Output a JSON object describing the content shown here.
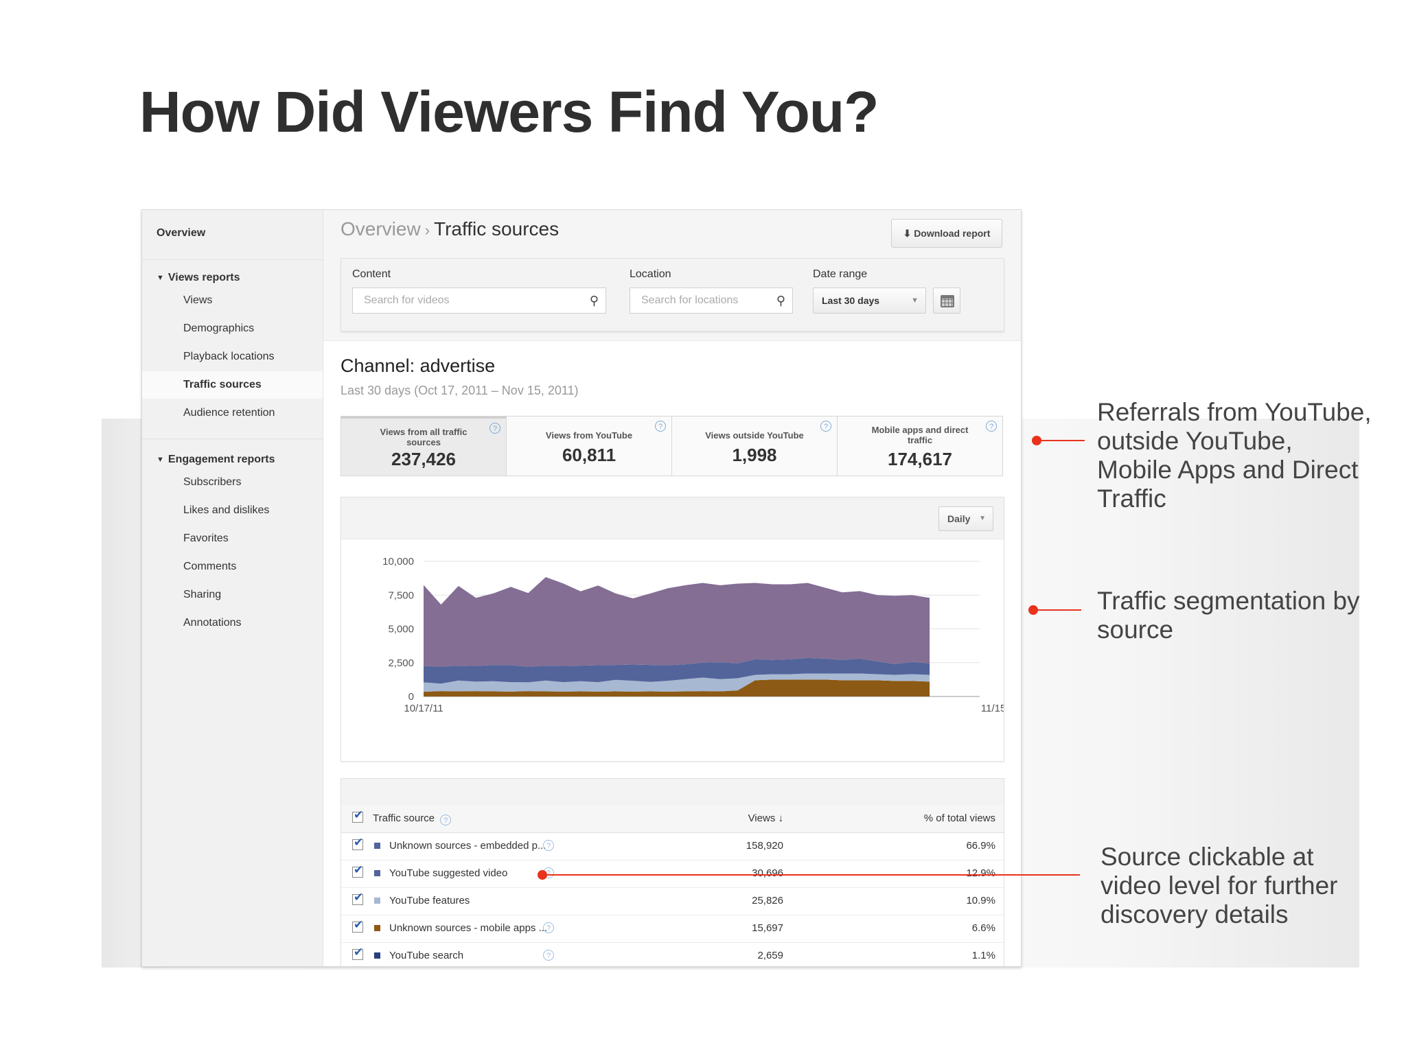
{
  "slide": {
    "title": "How Did Viewers Find You?"
  },
  "sidebar": {
    "overview": "Overview",
    "views_group": "Views reports",
    "views_items": [
      "Views",
      "Demographics",
      "Playback locations",
      "Traffic sources",
      "Audience retention"
    ],
    "active_item": "Traffic sources",
    "engagement_group": "Engagement reports",
    "engagement_items": [
      "Subscribers",
      "Likes and dislikes",
      "Favorites",
      "Comments",
      "Sharing",
      "Annotations"
    ]
  },
  "header": {
    "breadcrumb_parent": "Overview",
    "breadcrumb_sep": "›",
    "breadcrumb_current": "Traffic sources",
    "download_label": "Download report"
  },
  "filters": {
    "content_label": "Content",
    "content_placeholder": "Search for videos",
    "location_label": "Location",
    "location_placeholder": "Search for locations",
    "date_label": "Date range",
    "date_value": "Last 30 days"
  },
  "channel": {
    "title": "Channel: advertise",
    "range": "Last 30 days (Oct 17, 2011 – Nov 15, 2011)"
  },
  "cards": [
    {
      "label": "Views from all traffic sources",
      "value": "237,426"
    },
    {
      "label": "Views from YouTube",
      "value": "60,811"
    },
    {
      "label": "Views outside YouTube",
      "value": "1,998"
    },
    {
      "label": "Mobile apps and direct traffic",
      "value": "174,617"
    }
  ],
  "chart_controls": {
    "interval": "Daily"
  },
  "chart_data": {
    "type": "area",
    "stacked": true,
    "x_labels": [
      "10/17/11",
      "11/15/11"
    ],
    "x": [
      "10/17/11",
      "10/18/11",
      "10/19/11",
      "10/20/11",
      "10/21/11",
      "10/22/11",
      "10/23/11",
      "10/24/11",
      "10/25/11",
      "10/26/11",
      "10/27/11",
      "10/28/11",
      "10/29/11",
      "10/30/11",
      "10/31/11",
      "11/01/11",
      "11/02/11",
      "11/03/11",
      "11/04/11",
      "11/05/11",
      "11/06/11",
      "11/07/11",
      "11/08/11",
      "11/09/11",
      "11/10/11",
      "11/11/11",
      "11/12/11",
      "11/13/11",
      "11/14/11",
      "11/15/11"
    ],
    "y_ticks": [
      "0",
      "2,500",
      "5,000",
      "7,500",
      "10,000"
    ],
    "ylim": [
      0,
      10000
    ],
    "grid": true,
    "series": [
      {
        "color": "#8c5a14",
        "values": [
          350,
          400,
          380,
          400,
          380,
          360,
          400,
          380,
          360,
          380,
          360,
          380,
          360,
          380,
          360,
          380,
          400,
          380,
          450,
          1200,
          1250,
          1250,
          1250,
          1250,
          1200,
          1200,
          1200,
          1150,
          1150,
          1100
        ]
      },
      {
        "color": "#a7b8d3",
        "values": [
          700,
          550,
          800,
          700,
          750,
          700,
          650,
          800,
          700,
          750,
          700,
          850,
          800,
          700,
          800,
          900,
          1000,
          900,
          900,
          400,
          400,
          400,
          450,
          450,
          500,
          500,
          450,
          450,
          500,
          500
        ]
      },
      {
        "color": "#52649a",
        "values": [
          1200,
          1250,
          1100,
          1150,
          1200,
          1250,
          1150,
          1100,
          1200,
          1150,
          1250,
          1100,
          1200,
          1250,
          1150,
          1100,
          1100,
          1250,
          1100,
          1150,
          1050,
          1100,
          1150,
          1100,
          1000,
          1100,
          950,
          800,
          900,
          850
        ]
      },
      {
        "color": "#846e94",
        "values": [
          6000,
          4600,
          5900,
          5050,
          5300,
          5800,
          5450,
          6550,
          6100,
          5500,
          5900,
          5300,
          4900,
          5300,
          5700,
          5850,
          5900,
          5700,
          5900,
          5650,
          5600,
          5550,
          5550,
          5250,
          5000,
          5000,
          4900,
          5050,
          4950,
          4850
        ]
      }
    ]
  },
  "table": {
    "columns": {
      "source": "Traffic source",
      "views": "Views",
      "views_sort": "↓",
      "pct": "% of total views"
    },
    "rows": [
      {
        "source": "Unknown sources - embedded p...",
        "views": "158,920",
        "pct": "66.9%",
        "color": "#52649a"
      },
      {
        "source": "YouTube suggested video",
        "views": "30,696",
        "pct": "12.9%",
        "color": "#52649a"
      },
      {
        "source": "YouTube features",
        "views": "25,826",
        "pct": "10.9%",
        "color": "#a7b8d3"
      },
      {
        "source": "Unknown sources - mobile apps ...",
        "views": "15,697",
        "pct": "6.6%",
        "color": "#8c5a14"
      },
      {
        "source": "YouTube search",
        "views": "2,659",
        "pct": "1.1%",
        "color": "#2b3f7c"
      }
    ]
  },
  "callouts": [
    "Referrals from YouTube, outside YouTube, Mobile Apps and Direct Traffic",
    "Traffic segmentation by source",
    "Source clickable at video level for further discovery details"
  ],
  "colors": {
    "accent": "#e8321c",
    "link_blue": "#7fa9d6"
  }
}
